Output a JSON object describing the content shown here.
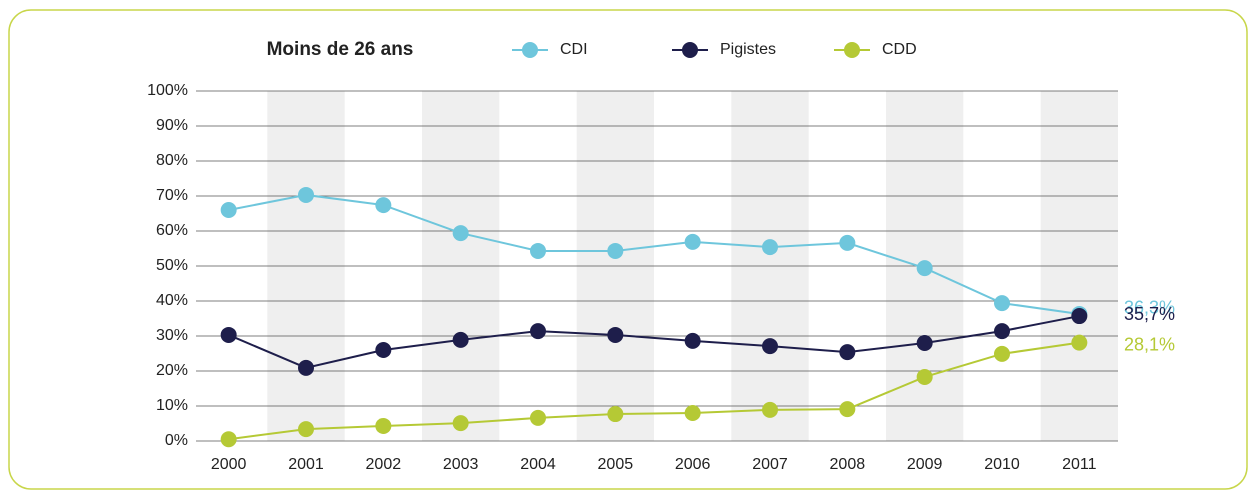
{
  "chart_data": {
    "type": "line",
    "title": "Moins de 26 ans",
    "categories": [
      "2000",
      "2001",
      "2002",
      "2003",
      "2004",
      "2005",
      "2006",
      "2007",
      "2008",
      "2009",
      "2010",
      "2011"
    ],
    "series": [
      {
        "name": "CDI",
        "color": "#6ec6dc",
        "values": [
          66,
          70.3,
          67.4,
          59.4,
          54.3,
          54.3,
          56.9,
          55.4,
          56.6,
          49.4,
          39.4,
          36.3
        ],
        "value_labels": [
          null,
          null,
          null,
          null,
          null,
          null,
          null,
          null,
          null,
          null,
          null,
          "36,3%"
        ]
      },
      {
        "name": "Pigistes",
        "color": "#1e1e4b",
        "values": [
          30.3,
          20.9,
          26,
          28.9,
          31.4,
          30.3,
          28.6,
          27.1,
          25.4,
          28,
          31.4,
          35.7
        ],
        "value_labels": [
          null,
          null,
          null,
          null,
          null,
          null,
          null,
          null,
          null,
          null,
          null,
          "35,7%"
        ]
      },
      {
        "name": "CDD",
        "color": "#b5c935",
        "values": [
          0.5,
          3.4,
          4.3,
          5.1,
          6.6,
          7.7,
          8,
          8.9,
          9.1,
          18.3,
          24.9,
          28.1
        ],
        "value_labels": [
          null,
          null,
          null,
          null,
          null,
          null,
          null,
          null,
          null,
          null,
          null,
          "28,1%"
        ]
      }
    ],
    "ylim": [
      0,
      100
    ],
    "yticks": [
      {
        "value": 0,
        "label": "0%"
      },
      {
        "value": 10,
        "label": "10%"
      },
      {
        "value": 20,
        "label": "20%"
      },
      {
        "value": 30,
        "label": "30%"
      },
      {
        "value": 40,
        "label": "40%"
      },
      {
        "value": 50,
        "label": "50%"
      },
      {
        "value": 60,
        "label": "60%"
      },
      {
        "value": 70,
        "label": "70%"
      },
      {
        "value": 80,
        "label": "80%"
      },
      {
        "value": 90,
        "label": "90%"
      },
      {
        "value": 100,
        "label": "100%"
      }
    ],
    "grid": true,
    "legend": "top"
  }
}
